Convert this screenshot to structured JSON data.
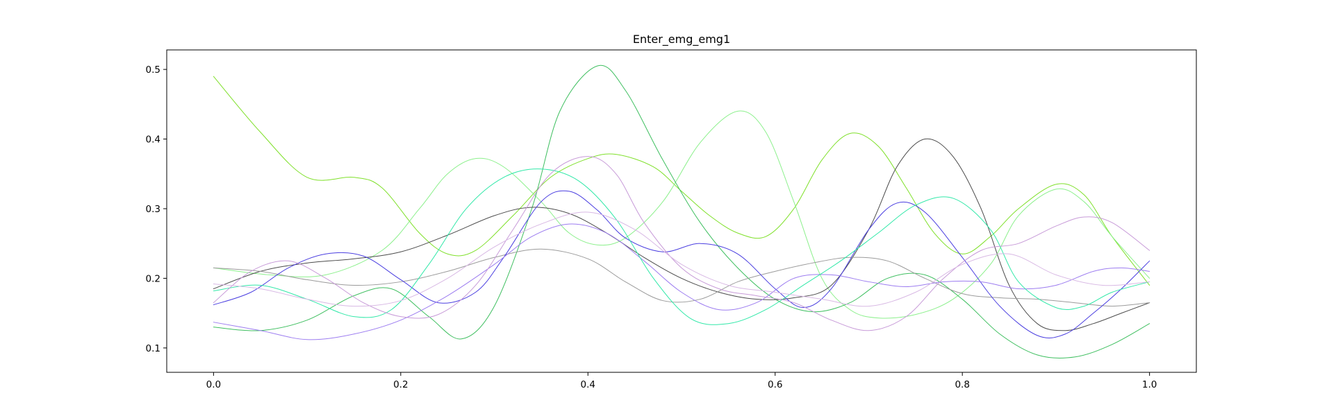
{
  "chart_data": {
    "type": "line",
    "title": "Enter_emg_emg1",
    "xlabel": "",
    "ylabel": "",
    "xlim": [
      -0.05,
      1.05
    ],
    "ylim": [
      0.065,
      0.528
    ],
    "xticks": [
      0.0,
      0.2,
      0.4,
      0.6,
      0.8,
      1.0
    ],
    "xtick_labels": [
      "0.0",
      "0.2",
      "0.4",
      "0.6",
      "0.8",
      "1.0"
    ],
    "yticks": [
      0.1,
      0.2,
      0.3,
      0.4,
      0.5
    ],
    "ytick_labels": [
      "0.1",
      "0.2",
      "0.3",
      "0.4",
      "0.5"
    ],
    "grid": false,
    "legend": "none",
    "series": [
      {
        "color": "#7fe02a",
        "x": [
          0.0,
          0.05,
          0.1,
          0.15,
          0.18,
          0.22,
          0.25,
          0.28,
          0.32,
          0.36,
          0.4,
          0.43,
          0.47,
          0.5,
          0.53,
          0.56,
          0.59,
          0.62,
          0.65,
          0.68,
          0.71,
          0.74,
          0.77,
          0.8,
          0.83,
          0.86,
          0.9,
          0.93,
          0.96,
          1.0
        ],
        "y": [
          0.49,
          0.41,
          0.345,
          0.345,
          0.33,
          0.265,
          0.235,
          0.24,
          0.29,
          0.345,
          0.372,
          0.378,
          0.36,
          0.325,
          0.29,
          0.265,
          0.26,
          0.3,
          0.37,
          0.408,
          0.39,
          0.33,
          0.265,
          0.235,
          0.26,
          0.3,
          0.335,
          0.32,
          0.26,
          0.19
        ]
      },
      {
        "color": "#8cf08c",
        "x": [
          0.0,
          0.06,
          0.12,
          0.18,
          0.22,
          0.25,
          0.28,
          0.31,
          0.35,
          0.38,
          0.41,
          0.44,
          0.48,
          0.52,
          0.56,
          0.59,
          0.62,
          0.65,
          0.68,
          0.71,
          0.75,
          0.79,
          0.83,
          0.86,
          0.9,
          0.93,
          0.96,
          1.0
        ],
        "y": [
          0.215,
          0.205,
          0.205,
          0.24,
          0.3,
          0.35,
          0.372,
          0.36,
          0.31,
          0.265,
          0.248,
          0.258,
          0.31,
          0.395,
          0.44,
          0.41,
          0.31,
          0.2,
          0.155,
          0.143,
          0.148,
          0.17,
          0.22,
          0.29,
          0.328,
          0.31,
          0.26,
          0.2
        ]
      },
      {
        "color": "#3fbf60",
        "x": [
          0.0,
          0.05,
          0.1,
          0.15,
          0.19,
          0.23,
          0.265,
          0.3,
          0.34,
          0.37,
          0.41,
          0.44,
          0.48,
          0.52,
          0.56,
          0.6,
          0.64,
          0.68,
          0.72,
          0.76,
          0.8,
          0.84,
          0.88,
          0.92,
          0.96,
          1.0
        ],
        "y": [
          0.13,
          0.125,
          0.14,
          0.175,
          0.185,
          0.145,
          0.113,
          0.16,
          0.3,
          0.44,
          0.505,
          0.47,
          0.37,
          0.28,
          0.215,
          0.17,
          0.152,
          0.165,
          0.2,
          0.205,
          0.17,
          0.12,
          0.09,
          0.087,
          0.105,
          0.135
        ]
      },
      {
        "color": "#4b4b4b",
        "x": [
          0.0,
          0.05,
          0.1,
          0.15,
          0.2,
          0.25,
          0.3,
          0.34,
          0.38,
          0.42,
          0.46,
          0.5,
          0.54,
          0.58,
          0.62,
          0.66,
          0.7,
          0.73,
          0.76,
          0.79,
          0.82,
          0.85,
          0.88,
          0.91,
          0.94,
          0.97,
          1.0
        ],
        "y": [
          0.185,
          0.21,
          0.222,
          0.228,
          0.238,
          0.262,
          0.29,
          0.302,
          0.293,
          0.265,
          0.23,
          0.2,
          0.18,
          0.17,
          0.172,
          0.19,
          0.27,
          0.36,
          0.4,
          0.375,
          0.3,
          0.19,
          0.135,
          0.125,
          0.135,
          0.15,
          0.165
        ]
      },
      {
        "color": "#9a9a9a",
        "x": [
          0.0,
          0.05,
          0.1,
          0.15,
          0.2,
          0.25,
          0.3,
          0.35,
          0.4,
          0.44,
          0.48,
          0.52,
          0.56,
          0.6,
          0.64,
          0.68,
          0.72,
          0.76,
          0.8,
          0.84,
          0.88,
          0.92,
          0.96,
          1.0
        ],
        "y": [
          0.215,
          0.21,
          0.198,
          0.19,
          0.195,
          0.21,
          0.23,
          0.242,
          0.228,
          0.195,
          0.168,
          0.17,
          0.195,
          0.21,
          0.222,
          0.23,
          0.225,
          0.2,
          0.178,
          0.172,
          0.17,
          0.165,
          0.16,
          0.165
        ]
      },
      {
        "color": "#4a3ee0",
        "x": [
          0.0,
          0.04,
          0.08,
          0.12,
          0.16,
          0.2,
          0.24,
          0.28,
          0.31,
          0.35,
          0.38,
          0.41,
          0.44,
          0.48,
          0.52,
          0.56,
          0.6,
          0.63,
          0.66,
          0.7,
          0.73,
          0.76,
          0.8,
          0.84,
          0.88,
          0.91,
          0.94,
          0.97,
          1.0
        ],
        "y": [
          0.162,
          0.18,
          0.215,
          0.235,
          0.232,
          0.198,
          0.165,
          0.18,
          0.23,
          0.31,
          0.325,
          0.298,
          0.258,
          0.238,
          0.25,
          0.235,
          0.185,
          0.158,
          0.185,
          0.27,
          0.308,
          0.295,
          0.23,
          0.16,
          0.118,
          0.12,
          0.15,
          0.185,
          0.225
        ]
      },
      {
        "color": "#9c7cf0",
        "x": [
          0.0,
          0.05,
          0.1,
          0.15,
          0.2,
          0.25,
          0.3,
          0.34,
          0.38,
          0.42,
          0.46,
          0.5,
          0.54,
          0.58,
          0.62,
          0.66,
          0.7,
          0.74,
          0.78,
          0.82,
          0.86,
          0.9,
          0.94,
          0.97,
          1.0
        ],
        "y": [
          0.137,
          0.125,
          0.112,
          0.12,
          0.14,
          0.175,
          0.22,
          0.26,
          0.278,
          0.265,
          0.225,
          0.18,
          0.155,
          0.165,
          0.2,
          0.205,
          0.195,
          0.188,
          0.195,
          0.195,
          0.185,
          0.19,
          0.21,
          0.215,
          0.21
        ]
      },
      {
        "color": "#30e8a8",
        "x": [
          0.0,
          0.05,
          0.1,
          0.15,
          0.19,
          0.23,
          0.27,
          0.31,
          0.35,
          0.39,
          0.43,
          0.47,
          0.51,
          0.55,
          0.59,
          0.63,
          0.67,
          0.71,
          0.75,
          0.79,
          0.83,
          0.86,
          0.9,
          0.93,
          0.96,
          1.0
        ],
        "y": [
          0.182,
          0.19,
          0.17,
          0.145,
          0.155,
          0.22,
          0.3,
          0.345,
          0.357,
          0.34,
          0.285,
          0.2,
          0.142,
          0.135,
          0.155,
          0.19,
          0.225,
          0.265,
          0.305,
          0.315,
          0.27,
          0.195,
          0.158,
          0.16,
          0.18,
          0.195
        ]
      },
      {
        "color": "#c79ad8",
        "x": [
          0.0,
          0.04,
          0.08,
          0.12,
          0.16,
          0.2,
          0.24,
          0.28,
          0.32,
          0.36,
          0.4,
          0.43,
          0.46,
          0.5,
          0.54,
          0.58,
          0.62,
          0.66,
          0.7,
          0.74,
          0.78,
          0.82,
          0.86,
          0.9,
          0.93,
          0.96,
          1.0
        ],
        "y": [
          0.165,
          0.21,
          0.225,
          0.2,
          0.165,
          0.145,
          0.148,
          0.19,
          0.27,
          0.35,
          0.375,
          0.35,
          0.28,
          0.215,
          0.185,
          0.175,
          0.165,
          0.14,
          0.125,
          0.145,
          0.2,
          0.24,
          0.25,
          0.275,
          0.288,
          0.28,
          0.24
        ]
      },
      {
        "color": "#d8b8e4",
        "x": [
          0.0,
          0.05,
          0.1,
          0.15,
          0.2,
          0.25,
          0.3,
          0.35,
          0.4,
          0.45,
          0.5,
          0.55,
          0.6,
          0.65,
          0.7,
          0.75,
          0.8,
          0.85,
          0.9,
          0.95,
          1.0
        ],
        "y": [
          0.192,
          0.185,
          0.17,
          0.16,
          0.168,
          0.2,
          0.245,
          0.278,
          0.295,
          0.27,
          0.22,
          0.19,
          0.18,
          0.17,
          0.16,
          0.18,
          0.22,
          0.235,
          0.205,
          0.19,
          0.195
        ]
      }
    ]
  }
}
